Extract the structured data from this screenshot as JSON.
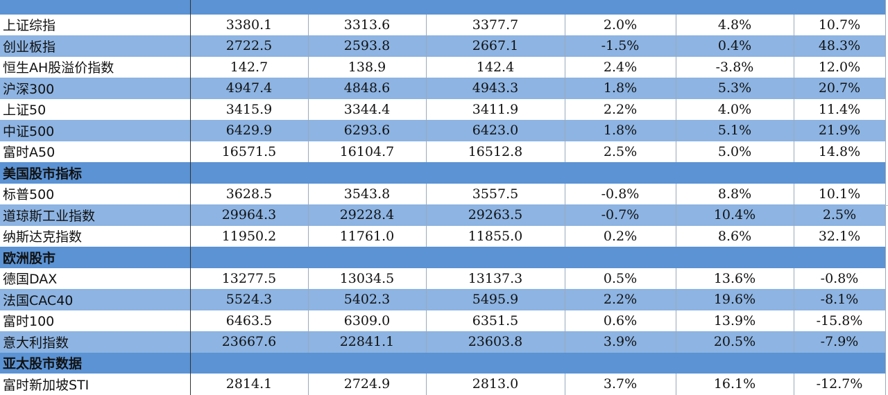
{
  "colors": {
    "row_light": "#8db4e2",
    "row_white": "#ffffff",
    "section": "#5b93d4"
  },
  "rows": [
    {
      "type": "section",
      "name": "",
      "cut": true
    },
    {
      "type": "data",
      "shade": "white",
      "name": "上证综指",
      "v1": "3380.1",
      "v2": "3313.6",
      "v3": "3377.7",
      "p1": "2.0%",
      "p2": "4.8%",
      "p3": "10.7%"
    },
    {
      "type": "data",
      "shade": "light",
      "name": "创业板指",
      "v1": "2722.5",
      "v2": "2593.8",
      "v3": "2667.1",
      "p1": "-1.5%",
      "p2": "0.4%",
      "p3": "48.3%"
    },
    {
      "type": "data",
      "shade": "white",
      "name": "恒生AH股溢价指数",
      "v1": "142.7",
      "v2": "138.9",
      "v3": "142.4",
      "p1": "2.4%",
      "p2": "-3.8%",
      "p3": "12.0%"
    },
    {
      "type": "data",
      "shade": "light",
      "name": "沪深300",
      "v1": "4947.4",
      "v2": "4848.6",
      "v3": "4943.3",
      "p1": "1.8%",
      "p2": "5.3%",
      "p3": "20.7%"
    },
    {
      "type": "data",
      "shade": "white",
      "name": "上证50",
      "v1": "3415.9",
      "v2": "3344.4",
      "v3": "3411.9",
      "p1": "2.2%",
      "p2": "4.0%",
      "p3": "11.4%"
    },
    {
      "type": "data",
      "shade": "light",
      "name": "中证500",
      "v1": "6429.9",
      "v2": "6293.6",
      "v3": "6423.0",
      "p1": "1.8%",
      "p2": "5.1%",
      "p3": "21.9%"
    },
    {
      "type": "data",
      "shade": "white",
      "name": "富时A50",
      "v1": "16571.5",
      "v2": "16104.7",
      "v3": "16512.8",
      "p1": "2.5%",
      "p2": "5.0%",
      "p3": "14.8%"
    },
    {
      "type": "section",
      "name": "美国股市指标"
    },
    {
      "type": "data",
      "shade": "white",
      "name": "标普500",
      "v1": "3628.5",
      "v2": "3543.8",
      "v3": "3557.5",
      "p1": "-0.8%",
      "p2": "8.8%",
      "p3": "10.1%"
    },
    {
      "type": "data",
      "shade": "light",
      "name": "道琼斯工业指数",
      "v1": "29964.3",
      "v2": "29228.4",
      "v3": "29263.5",
      "p1": "-0.7%",
      "p2": "10.4%",
      "p3": "2.5%"
    },
    {
      "type": "data",
      "shade": "white",
      "name": "纳斯达克指数",
      "v1": "11950.2",
      "v2": "11761.0",
      "v3": "11855.0",
      "p1": "0.2%",
      "p2": "8.6%",
      "p3": "32.1%"
    },
    {
      "type": "section",
      "name": "欧洲股市"
    },
    {
      "type": "data",
      "shade": "white",
      "name": "德国DAX",
      "v1": "13277.5",
      "v2": "13034.5",
      "v3": "13137.3",
      "p1": "0.5%",
      "p2": "13.6%",
      "p3": "-0.8%"
    },
    {
      "type": "data",
      "shade": "light",
      "name": "法国CAC40",
      "v1": "5524.3",
      "v2": "5402.3",
      "v3": "5495.9",
      "p1": "2.2%",
      "p2": "19.6%",
      "p3": "-8.1%"
    },
    {
      "type": "data",
      "shade": "white",
      "name": "富时100",
      "v1": "6463.5",
      "v2": "6309.0",
      "v3": "6351.5",
      "p1": "0.6%",
      "p2": "13.9%",
      "p3": "-15.8%"
    },
    {
      "type": "data",
      "shade": "light",
      "name": "意大利指数",
      "v1": "23667.6",
      "v2": "22841.1",
      "v3": "23603.8",
      "p1": "3.9%",
      "p2": "20.5%",
      "p3": "-7.9%"
    },
    {
      "type": "section",
      "name": "亚太股市数据"
    },
    {
      "type": "data",
      "shade": "white",
      "name": "富时新加坡STI",
      "v1": "2814.1",
      "v2": "2724.9",
      "v3": "2813.0",
      "p1": "3.7%",
      "p2": "16.1%",
      "p3": "-12.7%"
    }
  ]
}
